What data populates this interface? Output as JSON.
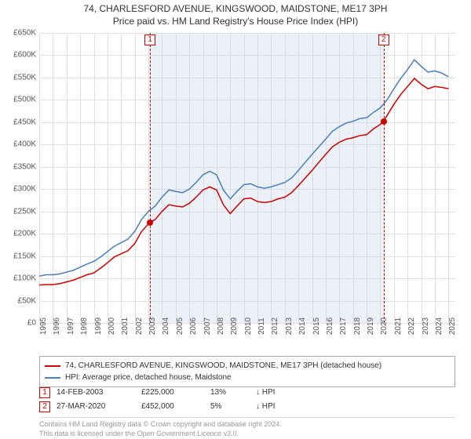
{
  "title_line1": "74, CHARLESFORD AVENUE, KINGSWOOD, MAIDSTONE, ME17 3PH",
  "title_line2": "Price paid vs. HM Land Registry's House Price Index (HPI)",
  "chart": {
    "type": "line",
    "xlim": [
      1995,
      2025.5
    ],
    "ylim": [
      0,
      650000
    ],
    "ytick_step": 50000,
    "y_ticks": [
      "£0",
      "£50K",
      "£100K",
      "£150K",
      "£200K",
      "£250K",
      "£300K",
      "£350K",
      "£400K",
      "£450K",
      "£500K",
      "£550K",
      "£600K",
      "£650K"
    ],
    "x_ticks": [
      "1995",
      "1996",
      "1997",
      "1998",
      "1999",
      "2000",
      "2001",
      "2002",
      "2003",
      "2004",
      "2005",
      "2006",
      "2007",
      "2008",
      "2009",
      "2010",
      "2011",
      "2012",
      "2013",
      "2014",
      "2015",
      "2016",
      "2017",
      "2018",
      "2019",
      "2020",
      "2021",
      "2022",
      "2023",
      "2024",
      "2025"
    ],
    "background_color": "#ffffff",
    "grid_color": "#e0e0e0",
    "shade_start": 2003.12,
    "shade_end": 2020.24,
    "series": [
      {
        "name": "property",
        "label": "74, CHARLESFORD AVENUE, KINGSWOOD, MAIDSTONE, ME17 3PH (detached house)",
        "color": "#cc0000",
        "line_width": 1.5,
        "data": [
          [
            1995.0,
            85000
          ],
          [
            1995.5,
            86000
          ],
          [
            1996.0,
            86000
          ],
          [
            1996.5,
            88000
          ],
          [
            1997.0,
            92000
          ],
          [
            1997.5,
            96000
          ],
          [
            1998.0,
            102000
          ],
          [
            1998.5,
            108000
          ],
          [
            1999.0,
            112000
          ],
          [
            1999.5,
            123000
          ],
          [
            2000.0,
            135000
          ],
          [
            2000.5,
            148000
          ],
          [
            2001.0,
            155000
          ],
          [
            2001.5,
            162000
          ],
          [
            2002.0,
            178000
          ],
          [
            2002.5,
            205000
          ],
          [
            2003.0,
            222000
          ],
          [
            2003.12,
            225000
          ],
          [
            2003.5,
            232000
          ],
          [
            2004.0,
            250000
          ],
          [
            2004.5,
            265000
          ],
          [
            2005.0,
            262000
          ],
          [
            2005.5,
            260000
          ],
          [
            2006.0,
            268000
          ],
          [
            2006.5,
            282000
          ],
          [
            2007.0,
            298000
          ],
          [
            2007.5,
            305000
          ],
          [
            2008.0,
            298000
          ],
          [
            2008.5,
            265000
          ],
          [
            2009.0,
            245000
          ],
          [
            2009.5,
            262000
          ],
          [
            2010.0,
            278000
          ],
          [
            2010.5,
            280000
          ],
          [
            2011.0,
            272000
          ],
          [
            2011.5,
            270000
          ],
          [
            2012.0,
            272000
          ],
          [
            2012.5,
            278000
          ],
          [
            2013.0,
            282000
          ],
          [
            2013.5,
            292000
          ],
          [
            2014.0,
            308000
          ],
          [
            2014.5,
            325000
          ],
          [
            2015.0,
            342000
          ],
          [
            2015.5,
            360000
          ],
          [
            2016.0,
            378000
          ],
          [
            2016.5,
            395000
          ],
          [
            2017.0,
            405000
          ],
          [
            2017.5,
            412000
          ],
          [
            2018.0,
            415000
          ],
          [
            2018.5,
            420000
          ],
          [
            2019.0,
            422000
          ],
          [
            2019.5,
            435000
          ],
          [
            2020.0,
            445000
          ],
          [
            2020.24,
            452000
          ],
          [
            2020.5,
            465000
          ],
          [
            2021.0,
            490000
          ],
          [
            2021.5,
            512000
          ],
          [
            2022.0,
            530000
          ],
          [
            2022.5,
            548000
          ],
          [
            2023.0,
            535000
          ],
          [
            2023.5,
            525000
          ],
          [
            2024.0,
            530000
          ],
          [
            2024.5,
            528000
          ],
          [
            2025.0,
            525000
          ]
        ]
      },
      {
        "name": "hpi",
        "label": "HPI: Average price, detached house, Maidstone",
        "color": "#4a7ebb",
        "line_width": 1.5,
        "data": [
          [
            1995.0,
            105000
          ],
          [
            1995.5,
            108000
          ],
          [
            1996.0,
            108000
          ],
          [
            1996.5,
            110000
          ],
          [
            1997.0,
            114000
          ],
          [
            1997.5,
            118000
          ],
          [
            1998.0,
            125000
          ],
          [
            1998.5,
            132000
          ],
          [
            1999.0,
            138000
          ],
          [
            1999.5,
            148000
          ],
          [
            2000.0,
            160000
          ],
          [
            2000.5,
            172000
          ],
          [
            2001.0,
            180000
          ],
          [
            2001.5,
            188000
          ],
          [
            2002.0,
            205000
          ],
          [
            2002.5,
            232000
          ],
          [
            2003.0,
            250000
          ],
          [
            2003.5,
            262000
          ],
          [
            2004.0,
            282000
          ],
          [
            2004.5,
            298000
          ],
          [
            2005.0,
            295000
          ],
          [
            2005.5,
            292000
          ],
          [
            2006.0,
            300000
          ],
          [
            2006.5,
            315000
          ],
          [
            2007.0,
            332000
          ],
          [
            2007.5,
            340000
          ],
          [
            2008.0,
            332000
          ],
          [
            2008.5,
            298000
          ],
          [
            2009.0,
            278000
          ],
          [
            2009.5,
            295000
          ],
          [
            2010.0,
            310000
          ],
          [
            2010.5,
            312000
          ],
          [
            2011.0,
            305000
          ],
          [
            2011.5,
            302000
          ],
          [
            2012.0,
            305000
          ],
          [
            2012.5,
            310000
          ],
          [
            2013.0,
            315000
          ],
          [
            2013.5,
            325000
          ],
          [
            2014.0,
            342000
          ],
          [
            2014.5,
            360000
          ],
          [
            2015.0,
            378000
          ],
          [
            2015.5,
            395000
          ],
          [
            2016.0,
            412000
          ],
          [
            2016.5,
            430000
          ],
          [
            2017.0,
            440000
          ],
          [
            2017.5,
            448000
          ],
          [
            2018.0,
            452000
          ],
          [
            2018.5,
            458000
          ],
          [
            2019.0,
            460000
          ],
          [
            2019.5,
            472000
          ],
          [
            2020.0,
            482000
          ],
          [
            2020.5,
            500000
          ],
          [
            2021.0,
            525000
          ],
          [
            2021.5,
            548000
          ],
          [
            2022.0,
            568000
          ],
          [
            2022.5,
            590000
          ],
          [
            2023.0,
            575000
          ],
          [
            2023.5,
            562000
          ],
          [
            2024.0,
            565000
          ],
          [
            2024.5,
            560000
          ],
          [
            2025.0,
            552000
          ]
        ]
      }
    ],
    "sale_markers": [
      {
        "idx": "1",
        "x": 2003.12,
        "y": 225000
      },
      {
        "idx": "2",
        "x": 2020.24,
        "y": 452000
      }
    ]
  },
  "legend": {
    "items": [
      {
        "color": "#cc0000",
        "label": "74, CHARLESFORD AVENUE, KINGSWOOD, MAIDSTONE, ME17 3PH (detached house)"
      },
      {
        "color": "#4a7ebb",
        "label": "HPI: Average price, detached house, Maidstone"
      }
    ]
  },
  "sales": [
    {
      "idx": "1",
      "date": "14-FEB-2003",
      "price": "£225,000",
      "pct": "13%",
      "arrow": "↓ HPI"
    },
    {
      "idx": "2",
      "date": "27-MAR-2020",
      "price": "£452,000",
      "pct": "5%",
      "arrow": "↓ HPI"
    }
  ],
  "footer_line1": "Contains HM Land Registry data © Crown copyright and database right 2024.",
  "footer_line2": "This data is licensed under the Open Government Licence v3.0."
}
